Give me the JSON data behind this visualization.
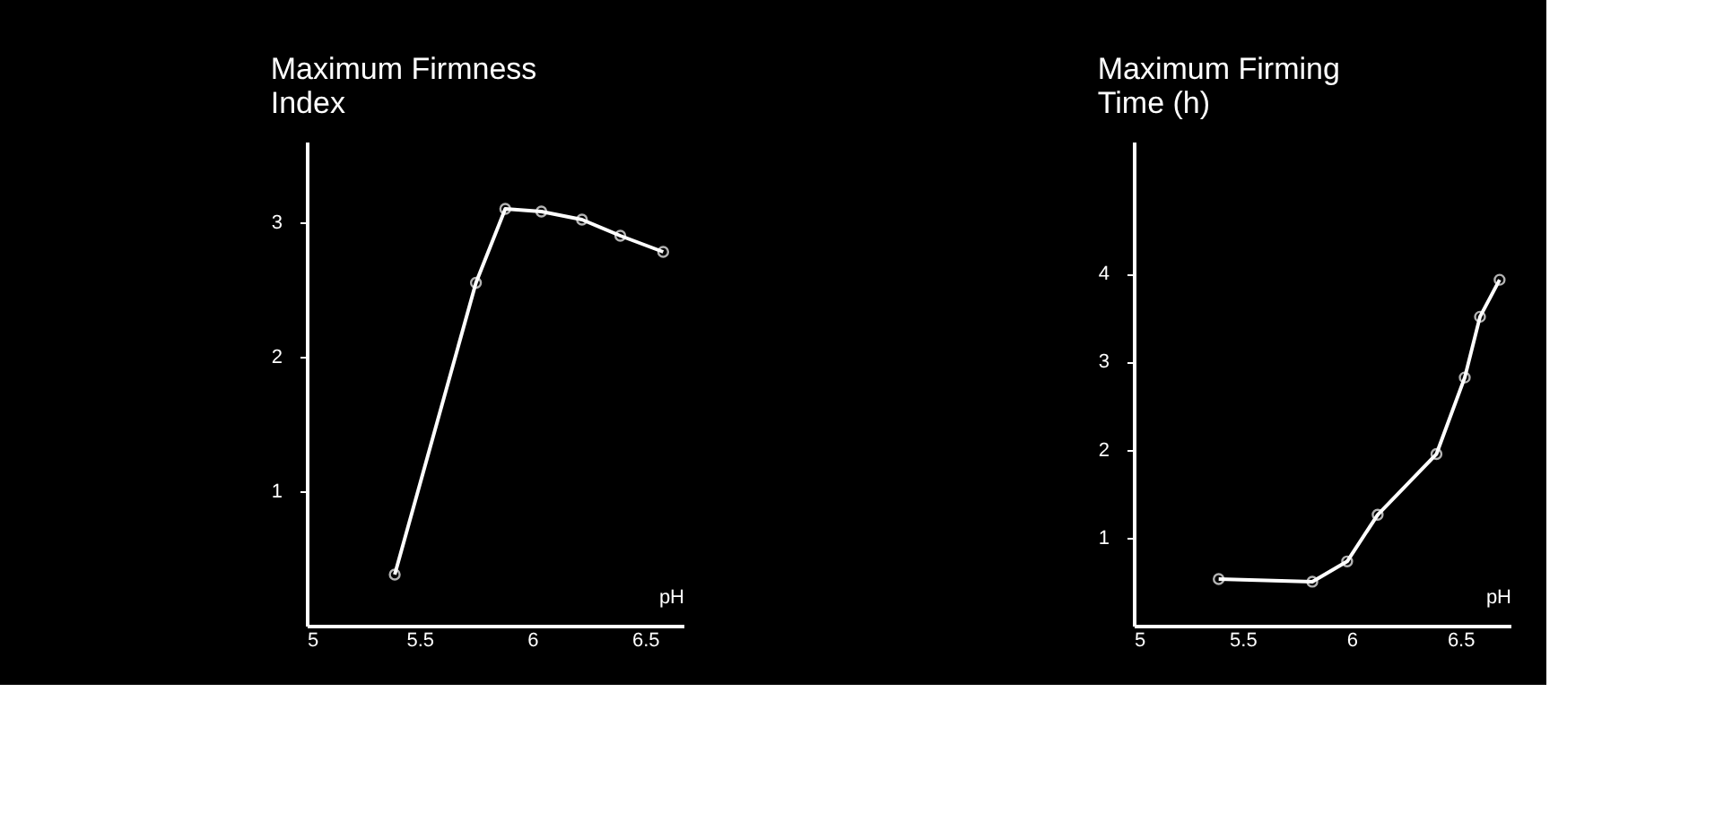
{
  "chart_data": [
    {
      "type": "line",
      "title": [
        "Maximum Firmness",
        "Index"
      ],
      "xlabel": "pH",
      "x": [
        5.39,
        5.75,
        5.88,
        6.04,
        6.22,
        6.39,
        6.58
      ],
      "series": [
        {
          "color": "#ffffff",
          "values": [
            0.38,
            2.55,
            3.1,
            3.08,
            3.02,
            2.9,
            2.78
          ]
        }
      ],
      "xlim": [
        5,
        6.67
      ],
      "xticks": [
        5,
        5.5,
        6,
        6.5
      ],
      "ylim": [
        0,
        3.6
      ],
      "yticks": [
        1,
        2,
        3
      ],
      "marker": "circle",
      "line_style": "solid",
      "grid": false
    },
    {
      "type": "line",
      "title": [
        "Maximum Firming",
        "Time (h)"
      ],
      "xlabel": "pH",
      "x": [
        5.39,
        5.82,
        5.98,
        6.12,
        6.39,
        6.52,
        6.59,
        6.68
      ],
      "series": [
        {
          "color": "#ffffff",
          "values": [
            0.53,
            0.5,
            0.73,
            1.26,
            1.95,
            2.82,
            3.51,
            3.93
          ]
        }
      ],
      "xlim": [
        5,
        6.73
      ],
      "xticks": [
        5,
        5.5,
        6,
        6.5
      ],
      "ylim": [
        0,
        5.5
      ],
      "yticks": [
        1,
        2,
        3,
        4
      ],
      "marker": "circle",
      "line_style": "solid",
      "grid": false
    }
  ]
}
